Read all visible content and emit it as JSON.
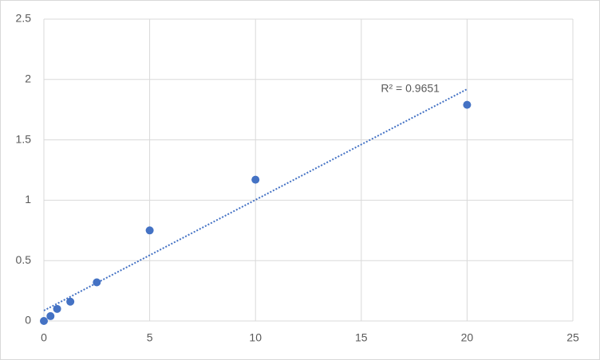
{
  "chart_data": {
    "type": "scatter",
    "x": [
      0,
      0.3125,
      0.625,
      1.25,
      2.5,
      5,
      10,
      20
    ],
    "values": [
      0,
      0.04,
      0.1,
      0.16,
      0.32,
      0.75,
      1.17,
      1.79
    ],
    "color": "#4472c4",
    "trendline": {
      "x": [
        0,
        20
      ],
      "values": [
        0.086,
        1.92
      ],
      "color": "#4472c4"
    },
    "annotation": "R² = 0.9651",
    "xlim": [
      0,
      25
    ],
    "xticks": [
      0,
      5,
      10,
      15,
      20,
      25
    ],
    "ylim": [
      0,
      2.5
    ],
    "yticks": [
      0,
      0.5,
      1,
      1.5,
      2,
      2.5
    ],
    "grid": true
  }
}
